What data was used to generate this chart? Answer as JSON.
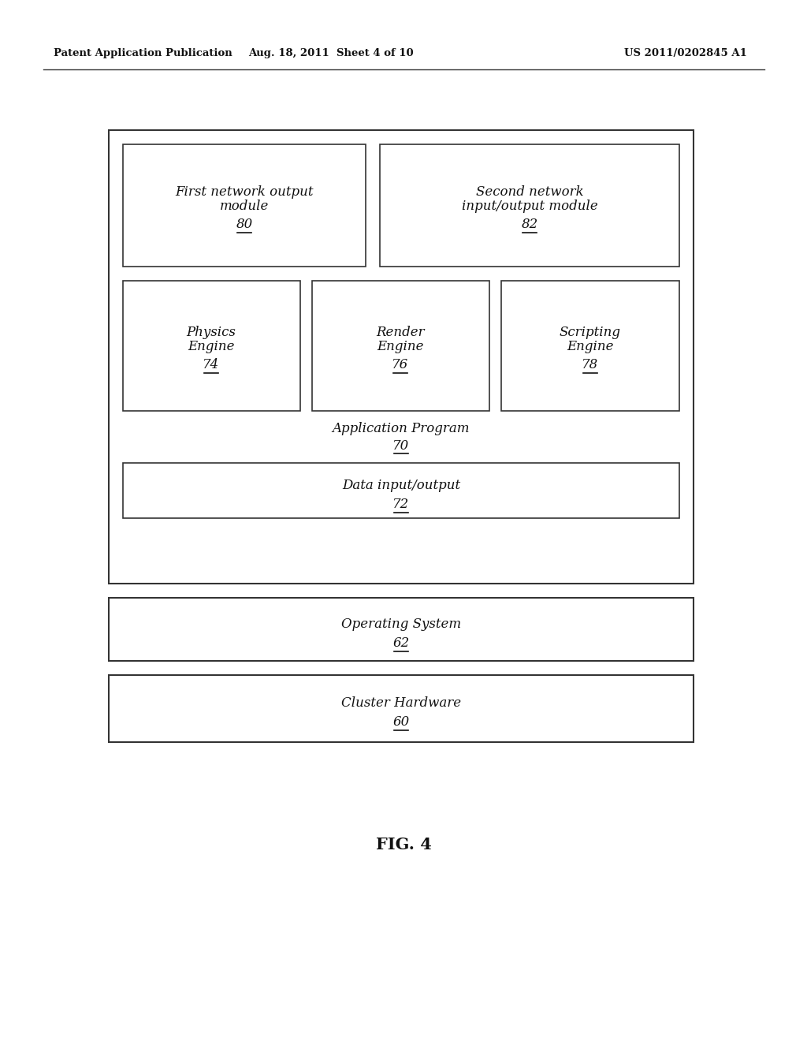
{
  "bg_color": "#ffffff",
  "text_color": "#111111",
  "header_left": "Patent Application Publication",
  "header_mid": "Aug. 18, 2011  Sheet 4 of 10",
  "header_right": "US 2011/0202845 A1",
  "fig_label": "FIG. 4",
  "boxes": {
    "cluster_hardware": {
      "label": "Cluster Hardware",
      "number": "60"
    },
    "operating_system": {
      "label": "Operating System",
      "number": "62"
    },
    "application_program": {
      "label": "Application Program",
      "number": "70"
    },
    "data_io": {
      "label": "Data input/output",
      "number": "72"
    },
    "physics_engine": {
      "label": "Physics\nEngine",
      "number": "74"
    },
    "render_engine": {
      "label": "Render\nEngine",
      "number": "76"
    },
    "scripting_engine": {
      "label": "Scripting\nEngine",
      "number": "78"
    },
    "first_network": {
      "label": "First network output\nmodule",
      "number": "80"
    },
    "second_network": {
      "label": "Second network\ninput/output module",
      "number": "82"
    }
  },
  "font_size_main": 12,
  "font_size_number": 12,
  "font_size_header": 9.5,
  "font_size_fig": 15
}
